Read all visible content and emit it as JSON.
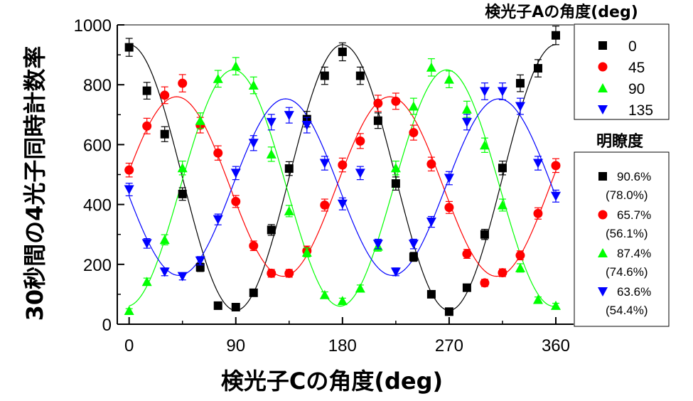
{
  "chart_data": {
    "type": "scatter",
    "xlabel": "検光子Cの角度(deg)",
    "ylabel": "30秒間の4光子同時計数率",
    "xlim": [
      -10,
      375
    ],
    "ylim": [
      0,
      1000
    ],
    "x_ticks": [
      0,
      90,
      180,
      270,
      360
    ],
    "y_ticks": [
      0,
      200,
      400,
      600,
      800,
      1000
    ],
    "x_tick_labels": [
      "0",
      "90",
      "180",
      "270",
      "360"
    ],
    "y_tick_labels": [
      "0",
      "200",
      "400",
      "600",
      "800",
      "1000"
    ],
    "grid": false,
    "x": [
      0,
      15,
      30,
      45,
      60,
      75,
      90,
      105,
      120,
      135,
      150,
      165,
      180,
      195,
      210,
      225,
      240,
      255,
      270,
      285,
      300,
      315,
      330,
      345,
      360
    ],
    "series": [
      {
        "name": "0",
        "marker": "square",
        "color": "#000000",
        "values": [
          925,
          780,
          635,
          435,
          190,
          62,
          57,
          105,
          315,
          520,
          685,
          830,
          910,
          830,
          680,
          470,
          225,
          100,
          42,
          122,
          300,
          522,
          805,
          855,
          965
        ],
        "errors": [
          30,
          28,
          25,
          21,
          14,
          8,
          8,
          10,
          18,
          23,
          26,
          29,
          30,
          29,
          26,
          22,
          15,
          10,
          6,
          11,
          17,
          23,
          28,
          29,
          31
        ],
        "fit": {
          "mean": 490,
          "amplitude": 444,
          "phase_deg": 0
        }
      },
      {
        "name": "45",
        "marker": "circle",
        "color": "#ff0000",
        "values": [
          515,
          662,
          765,
          805,
          665,
          572,
          410,
          262,
          170,
          170,
          245,
          398,
          532,
          612,
          738,
          745,
          640,
          535,
          390,
          235,
          138,
          172,
          230,
          370,
          530
        ],
        "errors": [
          23,
          26,
          28,
          29,
          26,
          24,
          20,
          16,
          13,
          13,
          16,
          20,
          23,
          25,
          27,
          27,
          25,
          23,
          20,
          15,
          12,
          13,
          15,
          19,
          23
        ],
        "fit": {
          "mean": 460,
          "amplitude": 300,
          "phase_deg": 40
        }
      },
      {
        "name": "90",
        "marker": "triangle-up",
        "color": "#00ff00",
        "values": [
          45,
          142,
          282,
          522,
          680,
          820,
          862,
          798,
          568,
          378,
          240,
          98,
          78,
          120,
          260,
          522,
          728,
          858,
          818,
          718,
          598,
          398,
          188,
          82,
          62
        ],
        "errors": [
          7,
          12,
          17,
          23,
          26,
          28,
          29,
          28,
          24,
          19,
          15,
          10,
          9,
          11,
          16,
          23,
          27,
          29,
          28,
          27,
          24,
          20,
          14,
          9,
          8
        ],
        "fit": {
          "mean": 455,
          "amplitude": 395,
          "phase_deg": 88
        }
      },
      {
        "name": "135",
        "marker": "triangle-down",
        "color": "#0000ff",
        "values": [
          450,
          270,
          175,
          160,
          212,
          350,
          505,
          605,
          675,
          698,
          665,
          538,
          402,
          505,
          268,
          175,
          268,
          342,
          488,
          675,
          778,
          778,
          728,
          538,
          428
        ],
        "errors": [
          21,
          16,
          13,
          12,
          14,
          18,
          22,
          25,
          26,
          26,
          26,
          23,
          20,
          22,
          16,
          13,
          16,
          18,
          22,
          26,
          28,
          28,
          27,
          23,
          20
        ],
        "fit": {
          "mean": 458,
          "amplitude": 295,
          "phase_deg": 132
        }
      }
    ],
    "legend": {
      "title": "検光子Aの角度(deg)",
      "placement": "right",
      "entries": [
        "0",
        "45",
        "90",
        "135"
      ]
    },
    "visibility_legend": {
      "title": "明瞭度",
      "placement": "right",
      "entries": [
        {
          "value": "90.6%",
          "corrected": "(78.0%)"
        },
        {
          "value": "65.7%",
          "corrected": "(56.1%)"
        },
        {
          "value": "87.4%",
          "corrected": "(74.6%)"
        },
        {
          "value": "63.6%",
          "corrected": "(54.4%)"
        }
      ]
    }
  }
}
